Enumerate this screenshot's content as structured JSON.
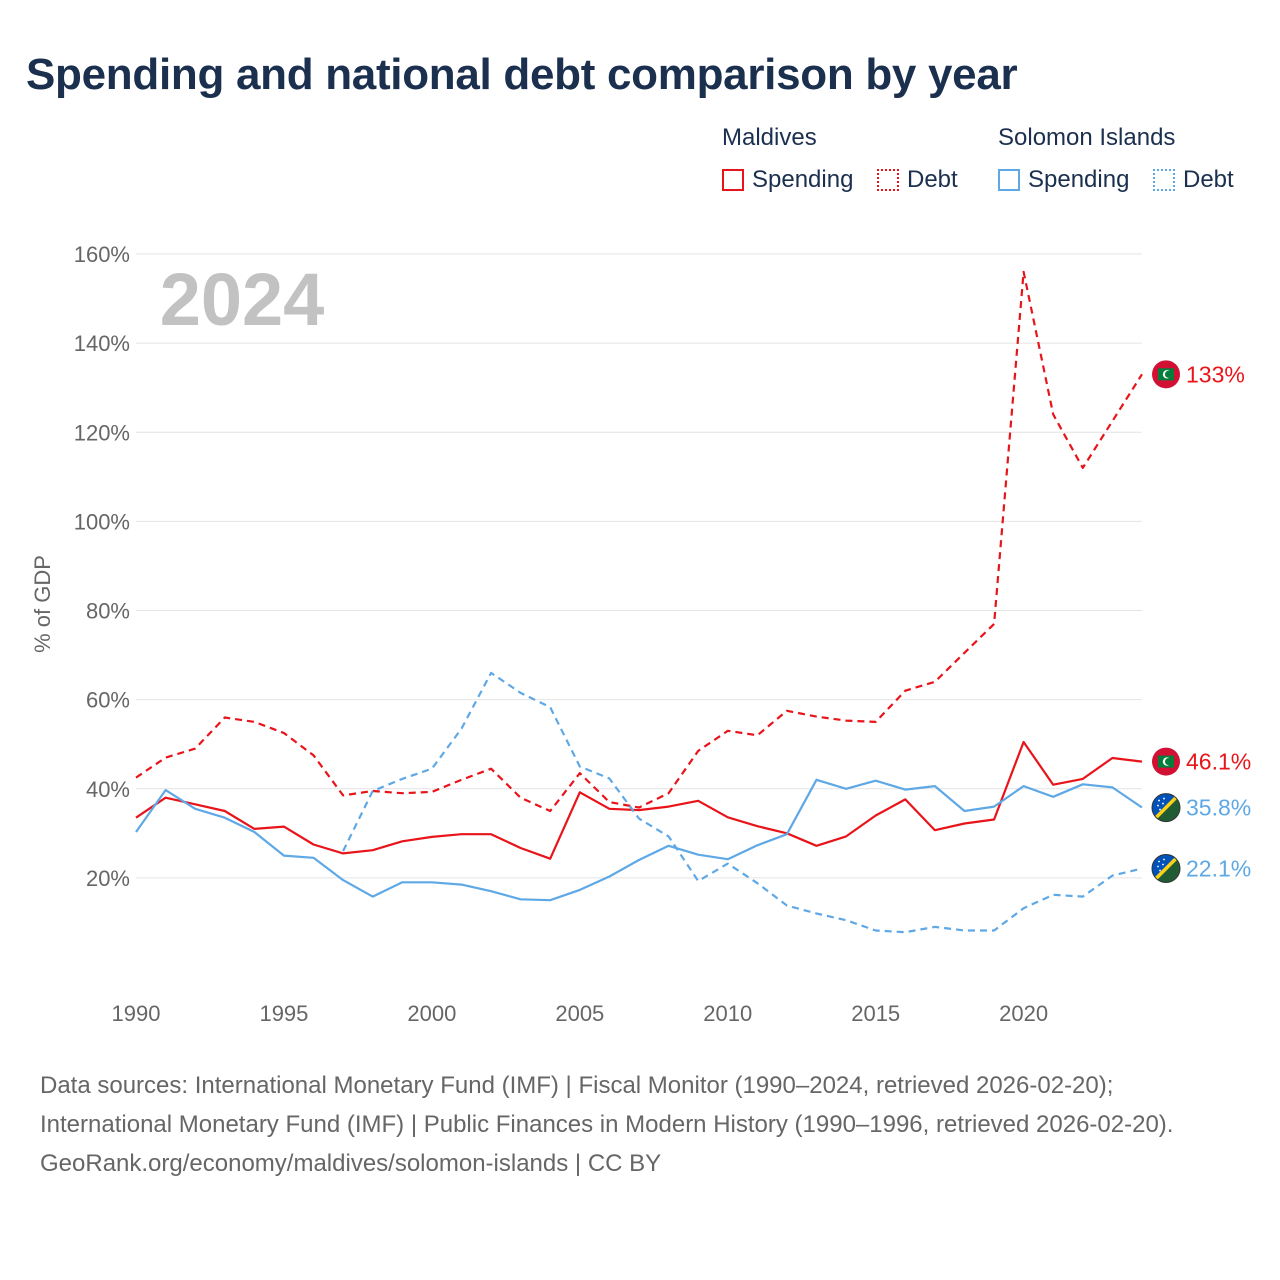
{
  "title": "Spending and national debt comparison by year",
  "legend": {
    "groups": [
      {
        "name": "Maldives",
        "color": "#e8141a",
        "items": [
          "Spending",
          "Debt"
        ]
      },
      {
        "name": "Solomon Islands",
        "color": "#5fa8e6",
        "items": [
          "Spending",
          "Debt"
        ]
      }
    ]
  },
  "chart_data": {
    "type": "line",
    "title": "Spending and national debt comparison by year",
    "xlabel": "",
    "ylabel": "% of GDP",
    "year_watermark": "2024",
    "xlim": [
      1990,
      2024
    ],
    "ylim": [
      0,
      160
    ],
    "x_ticks": [
      1990,
      1995,
      2000,
      2005,
      2010,
      2015,
      2020
    ],
    "y_ticks": [
      20,
      40,
      60,
      80,
      100,
      120,
      140,
      160
    ],
    "y_tick_labels": [
      "20%",
      "40%",
      "60%",
      "80%",
      "100%",
      "120%",
      "140%",
      "160%"
    ],
    "series": [
      {
        "name": "Maldives Debt",
        "country": "Maldives",
        "metric": "Debt",
        "color": "#e8141a",
        "dashed": true,
        "end_label": "133%",
        "flag": "maldives-flag",
        "points": [
          [
            1990,
            42.5
          ],
          [
            1991,
            47
          ],
          [
            1992,
            49
          ],
          [
            1993,
            56
          ],
          [
            1994,
            55
          ],
          [
            1995,
            52.5
          ],
          [
            1996,
            47.5
          ],
          [
            1997,
            38.5
          ],
          [
            1998,
            39.5
          ],
          [
            1999,
            39
          ],
          [
            2000,
            39.3
          ],
          [
            2001,
            42
          ],
          [
            2002,
            44.5
          ],
          [
            2003,
            38
          ],
          [
            2004,
            35
          ],
          [
            2005,
            43.5
          ],
          [
            2006,
            37
          ],
          [
            2007,
            35.8
          ],
          [
            2008,
            39
          ],
          [
            2009,
            48.5
          ],
          [
            2010,
            53
          ],
          [
            2011,
            52
          ],
          [
            2012,
            57.5
          ],
          [
            2013,
            56.2
          ],
          [
            2014,
            55.3
          ],
          [
            2015,
            55
          ],
          [
            2016,
            62
          ],
          [
            2017,
            64
          ],
          [
            2018,
            70.5
          ],
          [
            2019,
            77
          ],
          [
            2020,
            156
          ],
          [
            2021,
            124
          ],
          [
            2022,
            112
          ],
          [
            2023,
            122.5
          ],
          [
            2024,
            133
          ]
        ]
      },
      {
        "name": "Maldives Spending",
        "country": "Maldives",
        "metric": "Spending",
        "color": "#e8141a",
        "dashed": false,
        "end_label": "46.1%",
        "flag": "maldives-flag",
        "points": [
          [
            1990,
            33.5
          ],
          [
            1991,
            38
          ],
          [
            1992,
            36.5
          ],
          [
            1993,
            35
          ],
          [
            1994,
            31
          ],
          [
            1995,
            31.5
          ],
          [
            1996,
            27.5
          ],
          [
            1997,
            25.5
          ],
          [
            1998,
            26.2
          ],
          [
            1999,
            28.2
          ],
          [
            2000,
            29.2
          ],
          [
            2001,
            29.8
          ],
          [
            2002,
            29.8
          ],
          [
            2003,
            26.7
          ],
          [
            2004,
            24.3
          ],
          [
            2005,
            39.2
          ],
          [
            2006,
            35.5
          ],
          [
            2007,
            35.2
          ],
          [
            2008,
            36
          ],
          [
            2009,
            37.3
          ],
          [
            2010,
            33.6
          ],
          [
            2011,
            31.6
          ],
          [
            2012,
            30
          ],
          [
            2013,
            27.2
          ],
          [
            2014,
            29.3
          ],
          [
            2015,
            34
          ],
          [
            2016,
            37.6
          ],
          [
            2017,
            30.7
          ],
          [
            2018,
            32.2
          ],
          [
            2019,
            33.1
          ],
          [
            2020,
            50.5
          ],
          [
            2021,
            40.9
          ],
          [
            2022,
            42.2
          ],
          [
            2023,
            46.9
          ],
          [
            2024,
            46.1
          ]
        ]
      },
      {
        "name": "Solomon Islands Spending",
        "country": "Solomon Islands",
        "metric": "Spending",
        "color": "#5fa8e6",
        "dashed": false,
        "end_label": "35.8%",
        "flag": "solomon-islands-flag",
        "points": [
          [
            1990,
            30.3
          ],
          [
            1991,
            39.7
          ],
          [
            1992,
            35.5
          ],
          [
            1993,
            33.5
          ],
          [
            1994,
            30.3
          ],
          [
            1995,
            25
          ],
          [
            1996,
            24.5
          ],
          [
            1997,
            19.5
          ],
          [
            1998,
            15.8
          ],
          [
            1999,
            19
          ],
          [
            2000,
            19
          ],
          [
            2001,
            18.5
          ],
          [
            2002,
            17
          ],
          [
            2003,
            15.2
          ],
          [
            2004,
            15
          ],
          [
            2005,
            17.3
          ],
          [
            2006,
            20.3
          ],
          [
            2007,
            24
          ],
          [
            2008,
            27.2
          ],
          [
            2009,
            25.2
          ],
          [
            2010,
            24.2
          ],
          [
            2011,
            27.3
          ],
          [
            2012,
            29.8
          ],
          [
            2013,
            42
          ],
          [
            2014,
            40
          ],
          [
            2015,
            41.8
          ],
          [
            2016,
            39.8
          ],
          [
            2017,
            40.6
          ],
          [
            2018,
            35
          ],
          [
            2019,
            36
          ],
          [
            2020,
            40.6
          ],
          [
            2021,
            38.2
          ],
          [
            2022,
            41
          ],
          [
            2023,
            40.3
          ],
          [
            2024,
            35.8
          ]
        ]
      },
      {
        "name": "Solomon Islands Debt",
        "country": "Solomon Islands",
        "metric": "Debt",
        "color": "#5fa8e6",
        "dashed": true,
        "end_label": "22.1%",
        "flag": "solomon-islands-flag",
        "points": [
          [
            1997,
            26
          ],
          [
            1998,
            39.5
          ],
          [
            1999,
            42.2
          ],
          [
            2000,
            44.5
          ],
          [
            2001,
            53.5
          ],
          [
            2002,
            66
          ],
          [
            2003,
            61.5
          ],
          [
            2004,
            58.3
          ],
          [
            2005,
            45
          ],
          [
            2006,
            42.3
          ],
          [
            2007,
            33.3
          ],
          [
            2008,
            29.3
          ],
          [
            2009,
            19.3
          ],
          [
            2010,
            23.2
          ],
          [
            2011,
            18.8
          ],
          [
            2012,
            13.8
          ],
          [
            2013,
            12
          ],
          [
            2014,
            10.5
          ],
          [
            2015,
            8.2
          ],
          [
            2016,
            7.8
          ],
          [
            2017,
            9
          ],
          [
            2018,
            8.2
          ],
          [
            2019,
            8.2
          ],
          [
            2020,
            13.2
          ],
          [
            2021,
            16.2
          ],
          [
            2022,
            15.8
          ],
          [
            2023,
            20.5
          ],
          [
            2024,
            22.1
          ]
        ]
      }
    ]
  },
  "footer": {
    "sources": "Data sources: International Monetary Fund (IMF) | Fiscal Monitor (1990–2024, retrieved 2026-02-20); International Monetary Fund (IMF) | Public Finances in Modern History (1990–1996, retrieved 2026-02-20).",
    "credit": "GeoRank.org/economy/maldives/solomon-islands | CC BY"
  }
}
